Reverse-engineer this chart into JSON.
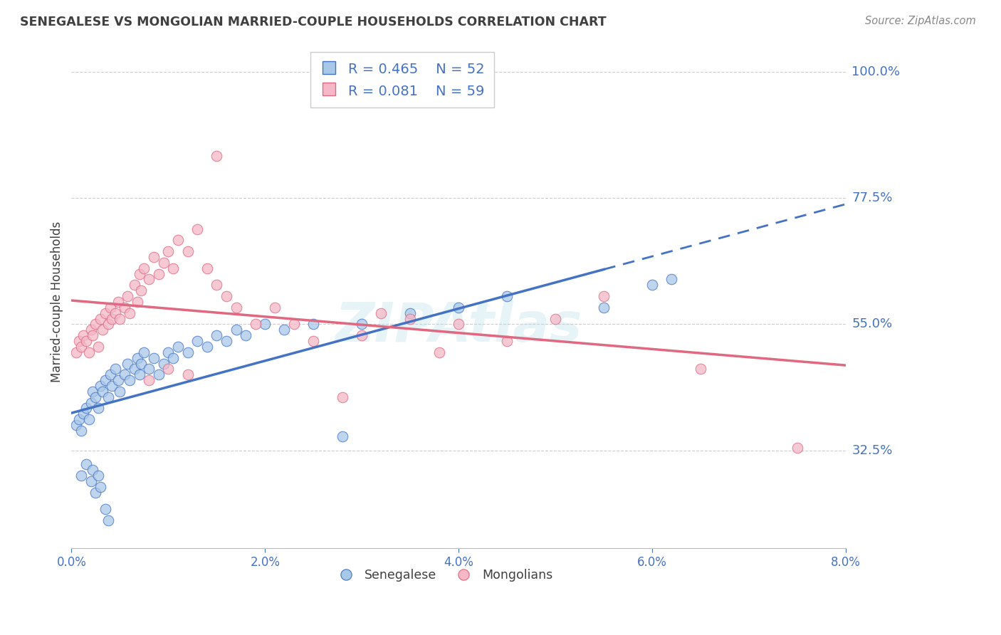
{
  "title": "SENEGALESE VS MONGOLIAN MARRIED-COUPLE HOUSEHOLDS CORRELATION CHART",
  "source": "Source: ZipAtlas.com",
  "ylabel": "Married-couple Households",
  "xlim": [
    0.0,
    8.0
  ],
  "ylim": [
    15.0,
    103.0
  ],
  "yticks": [
    32.5,
    55.0,
    77.5,
    100.0
  ],
  "ytick_labels": [
    "32.5%",
    "55.0%",
    "77.5%",
    "100.0%"
  ],
  "watermark": "ZIPAtlas",
  "blue_fill_color": "#a8c8e8",
  "blue_edge_color": "#4472c4",
  "pink_fill_color": "#f4b8c8",
  "pink_edge_color": "#e06880",
  "blue_line_color": "#4472c4",
  "pink_line_color": "#e06880",
  "axis_label_color": "#4472c4",
  "title_color": "#404040",
  "legend_R_blue": "R = 0.465",
  "legend_N_blue": "N = 52",
  "legend_R_pink": "R = 0.081",
  "legend_N_pink": "N = 59",
  "blue_x": [
    0.05,
    0.08,
    0.1,
    0.12,
    0.15,
    0.18,
    0.2,
    0.22,
    0.25,
    0.28,
    0.3,
    0.32,
    0.35,
    0.38,
    0.4,
    0.42,
    0.45,
    0.48,
    0.5,
    0.55,
    0.58,
    0.6,
    0.65,
    0.68,
    0.7,
    0.72,
    0.75,
    0.8,
    0.85,
    0.9,
    0.95,
    1.0,
    1.05,
    1.1,
    1.2,
    1.3,
    1.4,
    1.5,
    1.6,
    1.7,
    1.8,
    2.0,
    2.2,
    2.5,
    2.8,
    3.0,
    3.5,
    4.0,
    4.5,
    5.5,
    6.0,
    6.2
  ],
  "blue_y": [
    37,
    38,
    36,
    39,
    40,
    38,
    41,
    43,
    42,
    40,
    44,
    43,
    45,
    42,
    46,
    44,
    47,
    45,
    43,
    46,
    48,
    45,
    47,
    49,
    46,
    48,
    50,
    47,
    49,
    46,
    48,
    50,
    49,
    51,
    50,
    52,
    51,
    53,
    52,
    54,
    53,
    55,
    54,
    55,
    35,
    55,
    57,
    58,
    60,
    58,
    62,
    63
  ],
  "blue_x_low": [
    0.1,
    0.15,
    0.2,
    0.22,
    0.25,
    0.28,
    0.3,
    0.35,
    0.38
  ],
  "blue_y_low": [
    28,
    30,
    27,
    29,
    25,
    28,
    26,
    22,
    20
  ],
  "pink_x": [
    0.05,
    0.08,
    0.1,
    0.12,
    0.15,
    0.18,
    0.2,
    0.22,
    0.25,
    0.28,
    0.3,
    0.32,
    0.35,
    0.38,
    0.4,
    0.42,
    0.45,
    0.48,
    0.5,
    0.55,
    0.58,
    0.6,
    0.65,
    0.68,
    0.7,
    0.72,
    0.75,
    0.8,
    0.85,
    0.9,
    0.95,
    1.0,
    1.05,
    1.1,
    1.2,
    1.3,
    1.4,
    1.5,
    1.6,
    1.7,
    1.9,
    2.1,
    2.3,
    2.5,
    3.0,
    3.2,
    3.5,
    4.0,
    4.5,
    5.0,
    5.5,
    6.5,
    7.5,
    1.5,
    2.8,
    1.0,
    1.2,
    0.8,
    3.8
  ],
  "pink_y": [
    50,
    52,
    51,
    53,
    52,
    50,
    54,
    53,
    55,
    51,
    56,
    54,
    57,
    55,
    58,
    56,
    57,
    59,
    56,
    58,
    60,
    57,
    62,
    59,
    64,
    61,
    65,
    63,
    67,
    64,
    66,
    68,
    65,
    70,
    68,
    72,
    65,
    62,
    60,
    58,
    55,
    58,
    55,
    52,
    53,
    57,
    56,
    55,
    52,
    56,
    60,
    47,
    33,
    85,
    42,
    47,
    46,
    45,
    50
  ]
}
